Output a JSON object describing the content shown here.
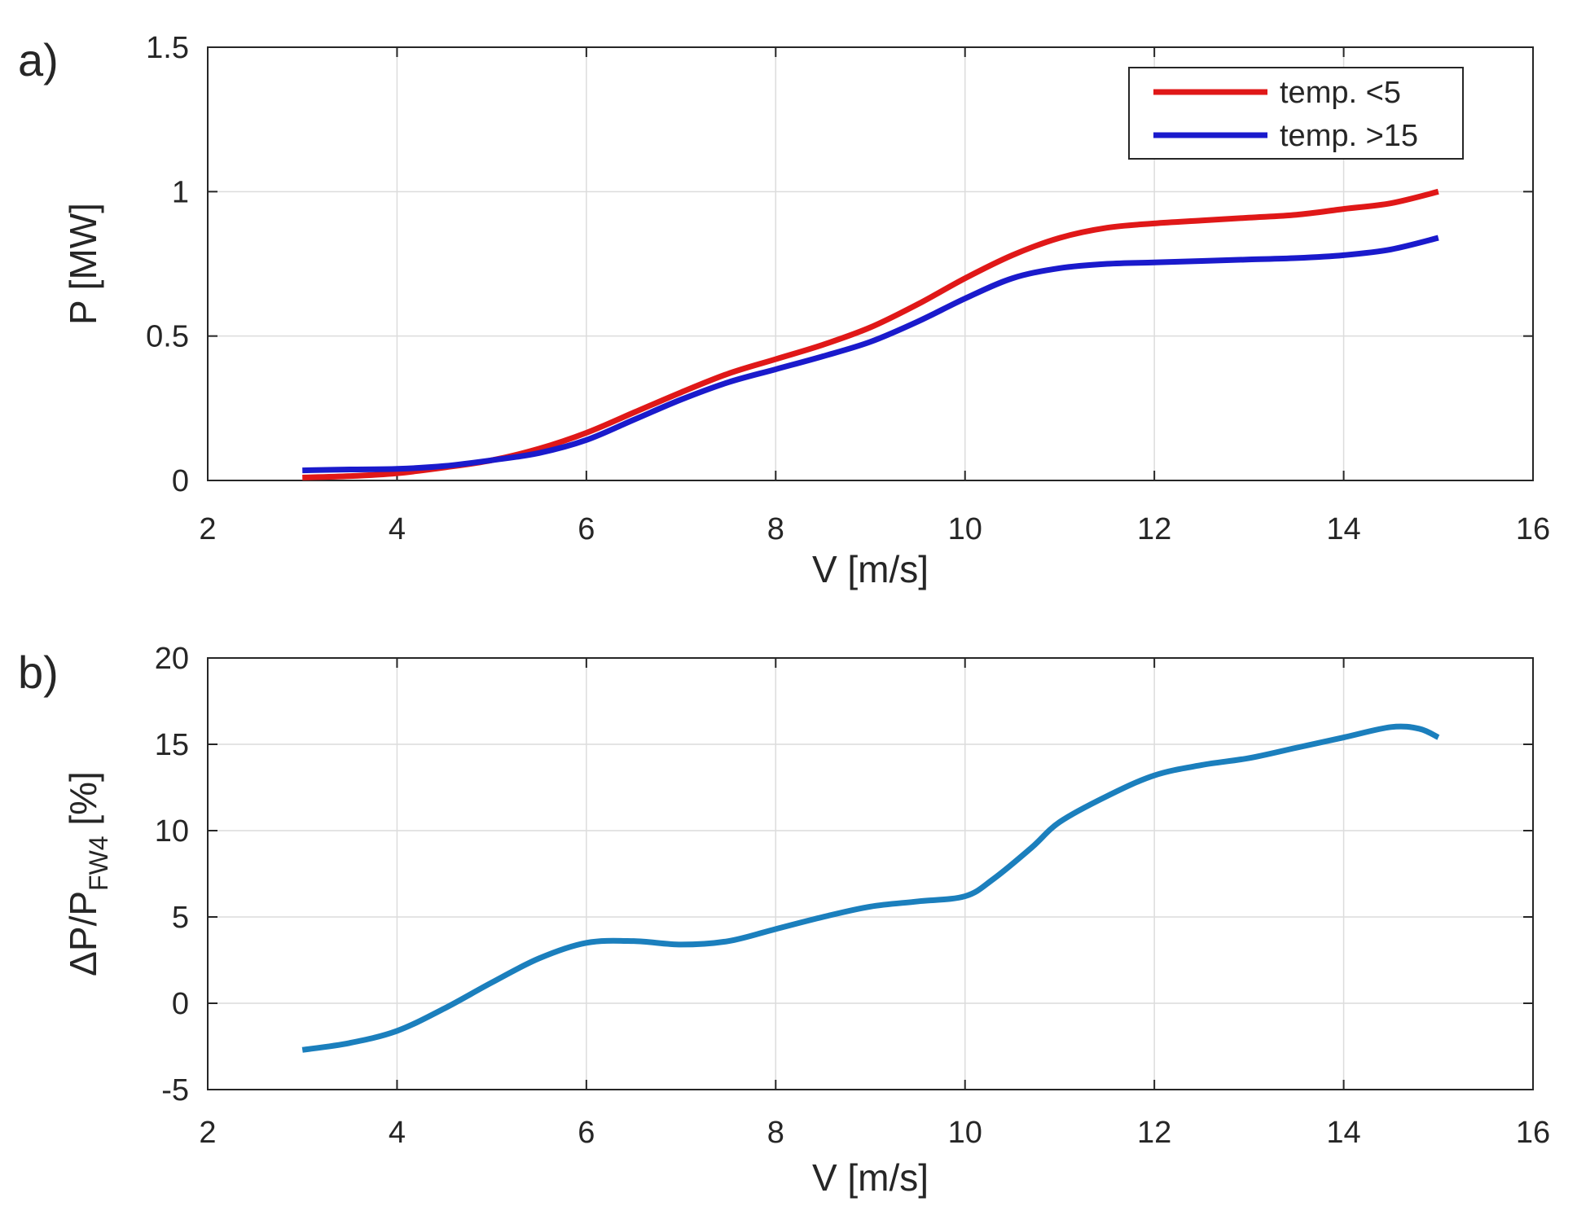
{
  "chart_data": [
    {
      "panel_label": "a)",
      "type": "line",
      "title": "",
      "xlabel": "V [m/s]",
      "ylabel": "P [MW]",
      "xlim": [
        2,
        16
      ],
      "ylim": [
        0,
        1.5
      ],
      "xticks": [
        2,
        4,
        6,
        8,
        10,
        12,
        14,
        16
      ],
      "xtick_labels": [
        "2",
        "4",
        "6",
        "8",
        "10",
        "12",
        "14",
        "16"
      ],
      "yticks": [
        0,
        0.5,
        1,
        1.5
      ],
      "ytick_labels": [
        "0",
        "0.5",
        "1",
        "1.5"
      ],
      "grid": true,
      "legend_position": "top-right",
      "series": [
        {
          "name": "temp. <5",
          "color": "#e01818",
          "x": [
            3,
            3.5,
            4,
            4.5,
            5,
            5.5,
            6,
            6.5,
            7,
            7.5,
            8,
            8.5,
            9,
            9.5,
            10,
            10.5,
            11,
            11.5,
            12,
            12.5,
            13,
            13.5,
            14,
            14.5,
            15
          ],
          "y": [
            0.01,
            0.015,
            0.025,
            0.045,
            0.07,
            0.11,
            0.165,
            0.235,
            0.305,
            0.37,
            0.42,
            0.47,
            0.53,
            0.61,
            0.7,
            0.78,
            0.84,
            0.875,
            0.89,
            0.9,
            0.91,
            0.92,
            0.94,
            0.96,
            1.0
          ]
        },
        {
          "name": "temp. >15",
          "color": "#1a1acc",
          "x": [
            3,
            3.5,
            4,
            4.5,
            5,
            5.5,
            6,
            6.5,
            7,
            7.5,
            8,
            8.5,
            9,
            9.5,
            10,
            10.5,
            11,
            11.5,
            12,
            12.5,
            13,
            13.5,
            14,
            14.5,
            15
          ],
          "y": [
            0.035,
            0.038,
            0.04,
            0.05,
            0.07,
            0.095,
            0.14,
            0.21,
            0.28,
            0.34,
            0.385,
            0.43,
            0.48,
            0.55,
            0.63,
            0.7,
            0.735,
            0.75,
            0.755,
            0.76,
            0.765,
            0.77,
            0.78,
            0.8,
            0.84
          ]
        }
      ]
    },
    {
      "panel_label": "b)",
      "type": "line",
      "title": "",
      "xlabel": "V [m/s]",
      "ylabel": "ΔP/P",
      "ylabel_subscript": "FW4",
      "ylabel_suffix": " [%]",
      "xlim": [
        2,
        16
      ],
      "ylim": [
        -5,
        20
      ],
      "xticks": [
        2,
        4,
        6,
        8,
        10,
        12,
        14,
        16
      ],
      "xtick_labels": [
        "2",
        "4",
        "6",
        "8",
        "10",
        "12",
        "14",
        "16"
      ],
      "yticks": [
        -5,
        0,
        5,
        10,
        15,
        20
      ],
      "ytick_labels": [
        "-5",
        "0",
        "5",
        "10",
        "15",
        "20"
      ],
      "grid": true,
      "series": [
        {
          "name": "ΔP/P_FW4",
          "color": "#1b7fbd",
          "x": [
            3,
            3.5,
            4,
            4.5,
            5,
            5.5,
            6,
            6.5,
            7,
            7.5,
            8,
            8.5,
            9,
            9.5,
            10,
            10.3,
            10.7,
            11,
            11.5,
            12,
            12.5,
            13,
            13.5,
            14,
            14.5,
            14.8,
            15
          ],
          "y": [
            -2.7,
            -2.3,
            -1.6,
            -0.3,
            1.2,
            2.6,
            3.5,
            3.6,
            3.4,
            3.6,
            4.3,
            5.0,
            5.6,
            5.9,
            6.2,
            7.2,
            9.0,
            10.5,
            12.0,
            13.2,
            13.8,
            14.2,
            14.8,
            15.4,
            16.0,
            15.9,
            15.4
          ]
        }
      ]
    }
  ]
}
